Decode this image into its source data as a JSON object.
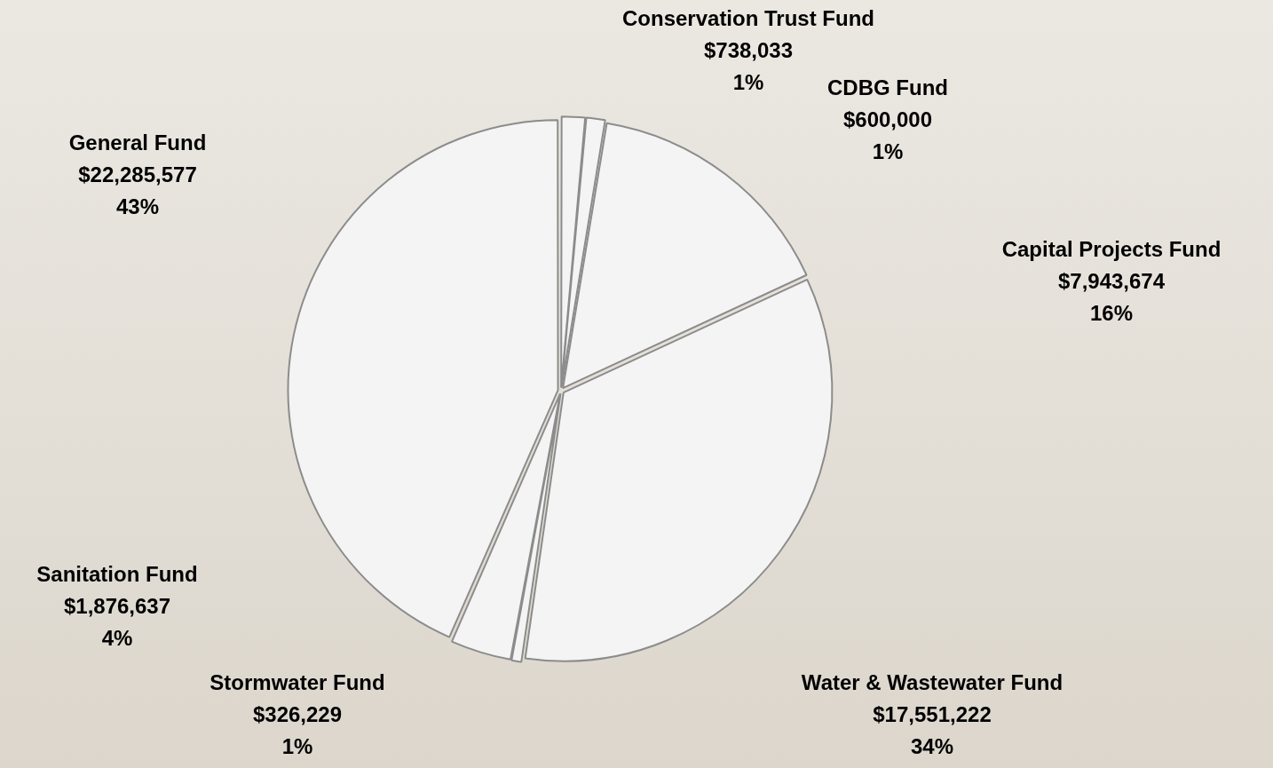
{
  "chart_data": {
    "type": "pie",
    "categories": [
      "Conservation Trust Fund",
      "CDBG Fund",
      "Capital Projects Fund",
      "Water & Wastewater Fund",
      "Stormwater Fund",
      "Sanitation Fund",
      "General Fund"
    ],
    "values": [
      738033,
      600000,
      7943674,
      17551222,
      326229,
      1876637,
      22285577
    ],
    "value_labels": [
      "$738,033",
      "$600,000",
      "$7,943,674",
      "$17,551,222",
      "$326,229",
      "$1,876,637",
      "$22,285,577"
    ],
    "percentages": [
      1,
      1,
      16,
      34,
      1,
      4,
      43
    ],
    "percentage_labels": [
      "1%",
      "1%",
      "16%",
      "34%",
      "1%",
      "4%",
      "43%"
    ],
    "color": "#f4f4f4",
    "data_labels": true
  }
}
